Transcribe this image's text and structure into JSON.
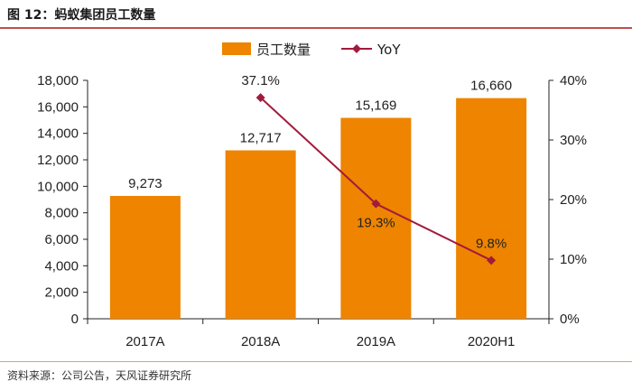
{
  "figure": {
    "title": "图 12：蚂蚁集团员工数量",
    "source": "资料来源：公司公告，天风证券研究所"
  },
  "colors": {
    "bar": "#EE8400",
    "line": "#A31A3C",
    "axis": "#222222",
    "title_rule": "#C0504D",
    "footer_rule": "#E8A060"
  },
  "chart_data": {
    "type": "bar",
    "categories": [
      "2017A",
      "2018A",
      "2019A",
      "2020H1"
    ],
    "series": [
      {
        "name": "员工数量",
        "type": "bar",
        "axis": "left",
        "values": [
          9273,
          12717,
          15169,
          16660
        ],
        "labels": [
          "9,273",
          "12,717",
          "15,169",
          "16,660"
        ]
      },
      {
        "name": "YoY",
        "type": "line",
        "axis": "right",
        "values": [
          null,
          37.1,
          19.3,
          9.8
        ],
        "labels": [
          "",
          "37.1%",
          "19.3%",
          "9.8%"
        ]
      }
    ],
    "y_left": {
      "range": [
        0,
        18000
      ],
      "ticks": [
        0,
        2000,
        4000,
        6000,
        8000,
        10000,
        12000,
        14000,
        16000,
        18000
      ],
      "tick_labels": [
        "0",
        "2,000",
        "4,000",
        "6,000",
        "8,000",
        "10,000",
        "12,000",
        "14,000",
        "16,000",
        "18,000"
      ]
    },
    "y_right": {
      "range": [
        0,
        40
      ],
      "ticks": [
        0,
        10,
        20,
        30,
        40
      ],
      "tick_labels": [
        "0%",
        "10%",
        "20%",
        "30%",
        "40%"
      ]
    },
    "legend": {
      "position": "top-center",
      "entries": [
        "员工数量",
        "YoY"
      ]
    },
    "grid": false
  }
}
